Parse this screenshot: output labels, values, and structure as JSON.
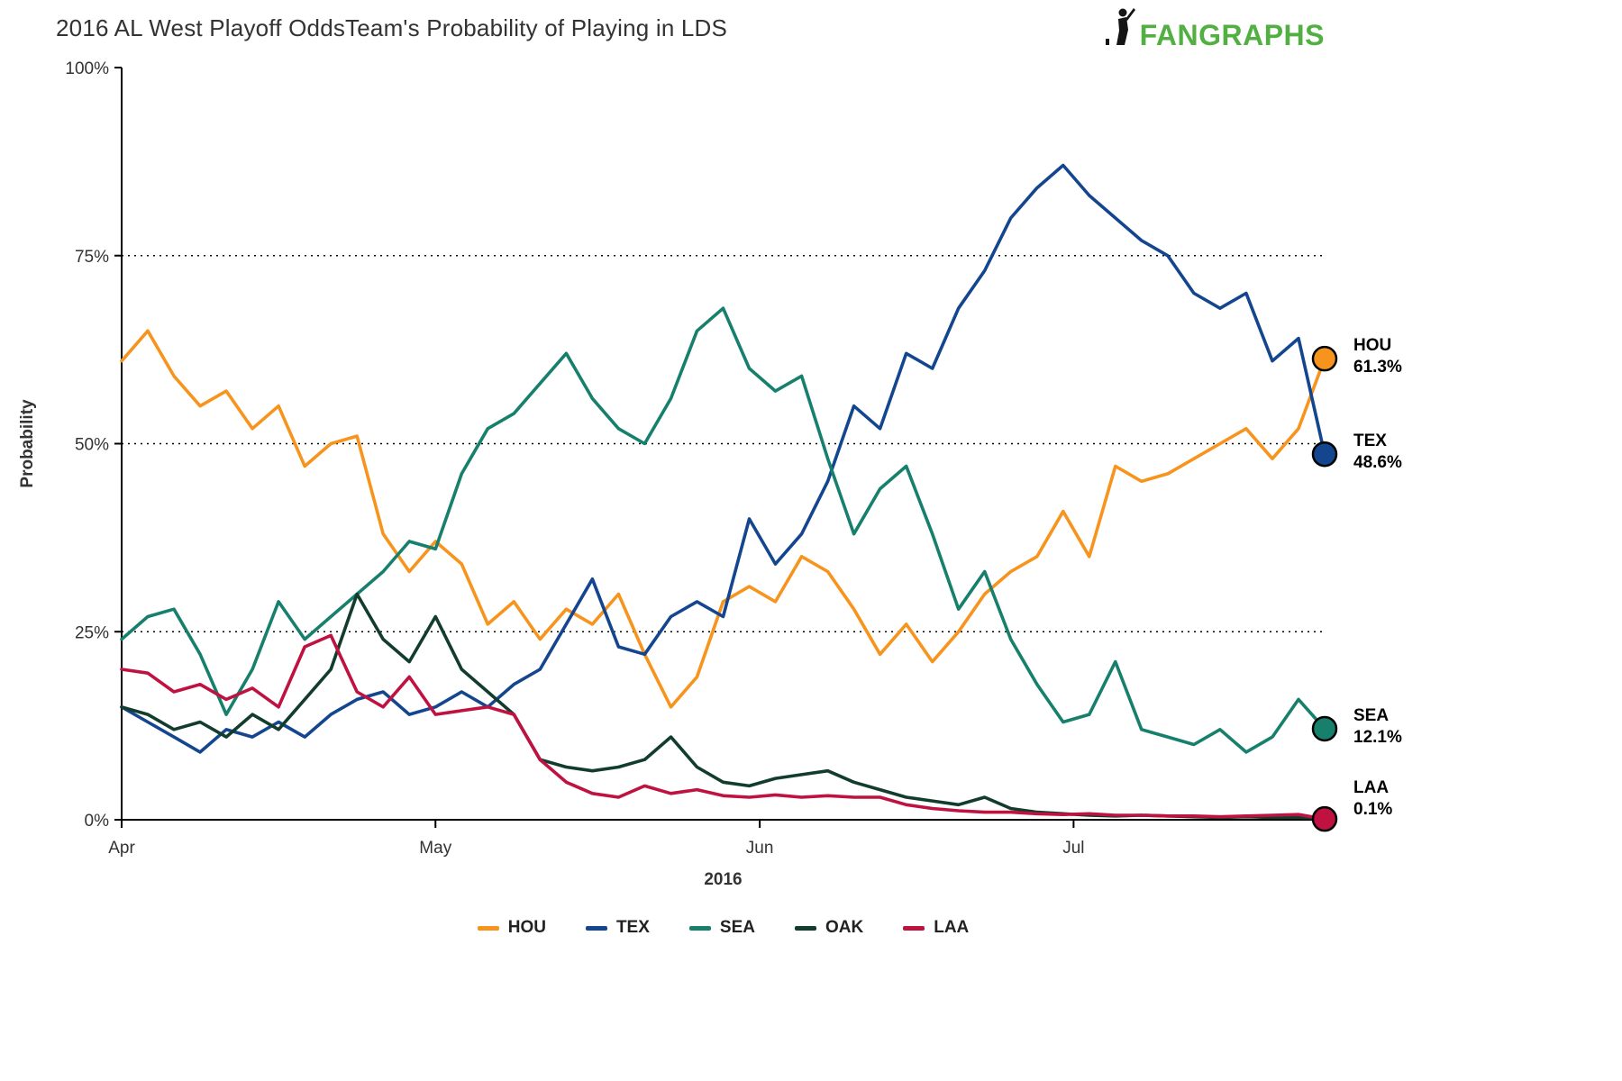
{
  "header": {
    "title": "2016 AL West Playoff OddsTeam's Probability of Playing in LDS",
    "logo_text": "FANGRAPHS",
    "logo_color": "#52b043",
    "logo_icon_color": "#151515"
  },
  "chart_data": {
    "type": "line",
    "title": "2016 AL West Playoff OddsTeam's Probability of Playing in LDS",
    "xlabel": "2016",
    "ylabel": "Probability",
    "x_unit": "days since Apr 1, 2016",
    "x_domain": [
      0,
      115
    ],
    "ylim": [
      0,
      100
    ],
    "grid": "horizontal dotted lines at 25%, 50%, 75%",
    "legend_position": "bottom",
    "x_ticks": [
      {
        "label": "Apr",
        "day": 0
      },
      {
        "label": "May",
        "day": 30
      },
      {
        "label": "Jun",
        "day": 61
      },
      {
        "label": "Jul",
        "day": 91
      }
    ],
    "y_ticks": [
      {
        "label": "0%",
        "value": 0,
        "grid": false
      },
      {
        "label": "25%",
        "value": 25,
        "grid": true
      },
      {
        "label": "50%",
        "value": 50,
        "grid": true
      },
      {
        "label": "75%",
        "value": 75,
        "grid": true
      },
      {
        "label": "100%",
        "value": 100,
        "grid": false
      }
    ],
    "x_days": [
      0,
      2.5,
      5,
      7.5,
      10,
      12.5,
      15,
      17.5,
      20,
      22.5,
      25,
      27.5,
      30,
      32.5,
      35,
      37.5,
      40,
      42.5,
      45,
      47.5,
      50,
      52.5,
      55,
      57.5,
      60,
      62.5,
      65,
      67.5,
      70,
      72.5,
      75,
      77.5,
      80,
      82.5,
      85,
      87.5,
      90,
      92.5,
      95,
      97.5,
      100,
      102.5,
      105,
      107.5,
      110,
      112.5,
      115
    ],
    "series": [
      {
        "name": "HOU",
        "color": "#f7941d",
        "end_value": 61.3,
        "end_label": "61.3%",
        "values": [
          61,
          65,
          59,
          55,
          57,
          52,
          55,
          47,
          50,
          51,
          38,
          33,
          37,
          34,
          26,
          29,
          24,
          28,
          26,
          30,
          22,
          15,
          19,
          29,
          31,
          29,
          35,
          33,
          28,
          22,
          26,
          21,
          25,
          30,
          33,
          35,
          41,
          35,
          47,
          45,
          46,
          48,
          50,
          52,
          48,
          52,
          61.3
        ]
      },
      {
        "name": "TEX",
        "color": "#14468f",
        "end_value": 48.6,
        "end_label": "48.6%",
        "values": [
          15,
          13,
          11,
          9,
          12,
          11,
          13,
          11,
          14,
          16,
          17,
          14,
          15,
          17,
          15,
          18,
          20,
          26,
          32,
          23,
          22,
          27,
          29,
          27,
          40,
          34,
          38,
          45,
          55,
          52,
          62,
          60,
          68,
          73,
          80,
          84,
          87,
          83,
          80,
          77,
          75,
          70,
          68,
          70,
          61,
          64,
          48.6
        ]
      },
      {
        "name": "SEA",
        "color": "#17806d",
        "end_value": 12.1,
        "end_label": "12.1%",
        "values": [
          24,
          27,
          28,
          22,
          14,
          20,
          29,
          24,
          27,
          30,
          33,
          37,
          36,
          46,
          52,
          54,
          58,
          62,
          56,
          52,
          50,
          56,
          65,
          68,
          60,
          57,
          59,
          48,
          38,
          44,
          47,
          38,
          28,
          33,
          24,
          18,
          13,
          14,
          21,
          12,
          11,
          10,
          12,
          9,
          11,
          16,
          12.1
        ]
      },
      {
        "name": "OAK",
        "color": "#123d2d",
        "end_value": null,
        "end_label": null,
        "values": [
          15,
          14,
          12,
          13,
          11,
          14,
          12,
          16,
          20,
          30,
          24,
          21,
          27,
          20,
          17,
          14,
          8,
          7,
          6.5,
          7,
          8,
          11,
          7,
          5,
          4.5,
          5.5,
          6,
          6.5,
          5,
          4,
          3,
          2.5,
          2,
          3,
          1.5,
          1,
          0.8,
          0.6,
          0.5,
          0.6,
          0.5,
          0.4,
          0.3,
          0.4,
          0.3,
          0.3,
          0.2
        ]
      },
      {
        "name": "LAA",
        "color": "#c01240",
        "end_value": 0.1,
        "end_label": "0.1%",
        "values": [
          20,
          19.5,
          17,
          18,
          16,
          17.5,
          15,
          23,
          24.5,
          17,
          15,
          19,
          14,
          14.5,
          15,
          14,
          8,
          5,
          3.5,
          3,
          4.5,
          3.5,
          4,
          3.2,
          3,
          3.3,
          3,
          3.2,
          3,
          3,
          2,
          1.5,
          1.2,
          1,
          1,
          0.8,
          0.7,
          0.8,
          0.6,
          0.6,
          0.5,
          0.5,
          0.4,
          0.5,
          0.6,
          0.7,
          0.1
        ]
      }
    ]
  }
}
